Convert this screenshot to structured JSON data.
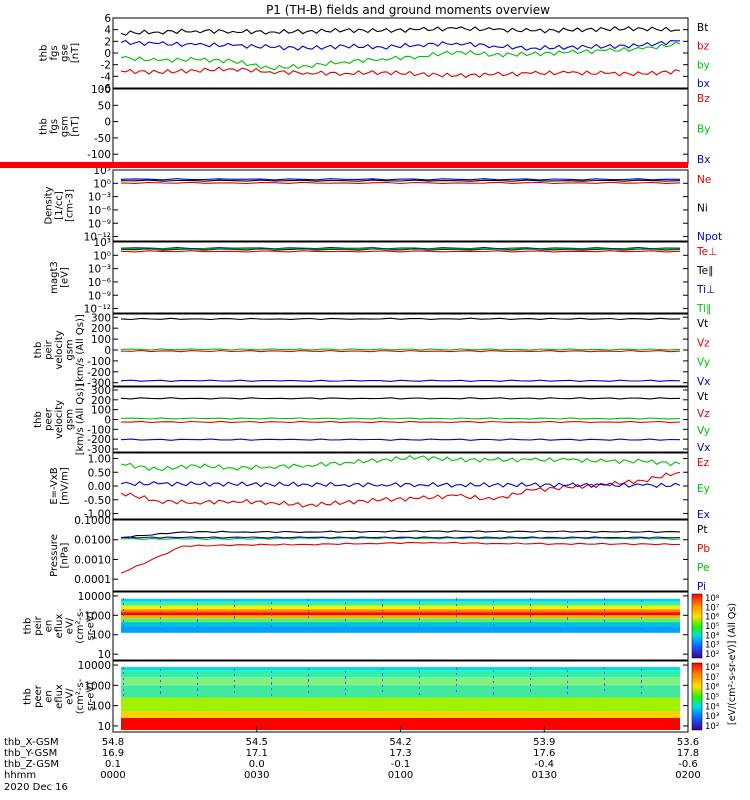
{
  "title": "P1 (TH-B) fields and ground moments overview",
  "colors": {
    "black": "#000000",
    "red": "#e00000",
    "green": "#00c000",
    "blue": "#0000d0"
  },
  "chart_data": [
    {
      "type": "line",
      "id": "fgs_gse",
      "ylabel": [
        "thb",
        "fgs",
        "gse",
        "[nT]"
      ],
      "ticks": [
        "6",
        "4",
        "2",
        "0",
        "-2",
        "-4",
        "-6"
      ],
      "ylim": [
        -6,
        6
      ],
      "series": [
        {
          "name": "Bt",
          "color": "black",
          "values": [
            3.4,
            3.6,
            3.8,
            3.7,
            3.6,
            3.7,
            3.9,
            3.8,
            4.0,
            4.2,
            4.0,
            3.8,
            3.9,
            4.1,
            4.2,
            3.9
          ]
        },
        {
          "name": "bz",
          "color": "red",
          "values": [
            -3.1,
            -3.3,
            -3.0,
            -2.7,
            -3.2,
            -3.4,
            -3.5,
            -3.3,
            -3.6,
            -3.9,
            -3.7,
            -3.5,
            -3.4,
            -3.5,
            -3.6,
            -3.1
          ]
        },
        {
          "name": "by",
          "color": "green",
          "values": [
            -0.8,
            -1.3,
            -1.1,
            -1.4,
            -2.6,
            -2.2,
            -1.5,
            -1.0,
            -0.6,
            0.2,
            -0.3,
            -0.2,
            0.1,
            0.4,
            0.7,
            1.6
          ]
        },
        {
          "name": "bx",
          "color": "blue",
          "values": [
            1.8,
            1.6,
            1.4,
            1.3,
            1.0,
            0.8,
            1.2,
            1.0,
            1.4,
            1.7,
            1.2,
            0.8,
            1.0,
            1.1,
            1.3,
            2.1
          ]
        }
      ]
    },
    {
      "type": "line",
      "id": "fgs_gsm",
      "ylabel": [
        "thb",
        "fgs",
        "gsm",
        "[nT]"
      ],
      "ticks": [
        "100",
        "50",
        "0",
        "-50",
        "-100"
      ],
      "ylim": [
        -130,
        100
      ],
      "series": [],
      "legend": [
        {
          "name": "Bz",
          "color": "red"
        },
        {
          "name": "By",
          "color": "green"
        },
        {
          "name": "Bx",
          "color": "blue"
        }
      ]
    },
    {
      "type": "line",
      "id": "density",
      "ylabel": [
        "Density",
        "[1/cc]",
        "[cm-3]"
      ],
      "ticks": [
        "10³",
        "10⁰",
        "10⁻³",
        "10⁻⁶",
        "10⁻⁹",
        "10⁻¹²"
      ],
      "ylim": [
        -13,
        3
      ],
      "series": [
        {
          "name": "Ne",
          "color": "red",
          "values": [
            0.1,
            0.1,
            0.1,
            0.1,
            0.1,
            0.1
          ]
        },
        {
          "name": "Ni",
          "color": "black",
          "values": [
            0.6,
            0.6,
            0.6,
            0.6,
            0.6,
            0.6
          ]
        },
        {
          "name": "Npot",
          "color": "blue",
          "values": [
            0.9,
            0.9,
            0.9,
            0.9,
            0.9,
            0.9
          ]
        }
      ]
    },
    {
      "type": "line",
      "id": "temperature",
      "ylabel": [
        "magt3",
        "[eV]"
      ],
      "ticks": [
        "10³",
        "10⁰",
        "10⁻³",
        "10⁻⁶",
        "10⁻⁹",
        "10⁻¹²"
      ],
      "ylim": [
        -13,
        3
      ],
      "series": [
        {
          "name": "Te⊥",
          "color": "red",
          "values": [
            0.9,
            0.9,
            0.9,
            0.9,
            0.9,
            0.9
          ]
        },
        {
          "name": "Te∥",
          "color": "black",
          "values": [
            1.3,
            1.3,
            1.3,
            1.3,
            1.3,
            1.3
          ]
        },
        {
          "name": "Ti⊥",
          "color": "blue",
          "values": [
            1.6,
            1.6,
            1.6,
            1.6,
            1.6,
            1.6
          ]
        },
        {
          "name": "Ti∥",
          "color": "green",
          "values": [
            1.4,
            1.4,
            1.4,
            1.4,
            1.4,
            1.4
          ]
        }
      ]
    },
    {
      "type": "line",
      "id": "peir_velocity",
      "ylabel": [
        "thb",
        "peir",
        "velocity",
        "gsm",
        "[km/s (All Qs)]"
      ],
      "ticks": [
        "300",
        "200",
        "100",
        "0",
        "-100",
        "-200",
        "-300"
      ],
      "ylim": [
        -330,
        330
      ],
      "series": [
        {
          "name": "Vt",
          "color": "black",
          "values": [
            285,
            285,
            285,
            286,
            286,
            286,
            285,
            285
          ]
        },
        {
          "name": "Vz",
          "color": "red",
          "values": [
            -10,
            -10,
            -10,
            -10,
            -10,
            -10,
            -10,
            -10
          ]
        },
        {
          "name": "Vy",
          "color": "green",
          "values": [
            5,
            5,
            5,
            5,
            5,
            5,
            5,
            5
          ]
        },
        {
          "name": "Vx",
          "color": "blue",
          "values": [
            -282,
            -282,
            -283,
            -283,
            -282,
            -282,
            -282,
            -282
          ]
        }
      ]
    },
    {
      "type": "line",
      "id": "peer_velocity",
      "ylabel": [
        "thb",
        "peer",
        "velocity",
        "gsm",
        "[km/s (All Qs)]"
      ],
      "ticks": [
        "300",
        "200",
        "100",
        "0",
        "-100",
        "-200",
        "-300"
      ],
      "ylim": [
        -330,
        330
      ],
      "series": [
        {
          "name": "Vt",
          "color": "black",
          "values": [
            215,
            215,
            215,
            215,
            215,
            215,
            215,
            215
          ]
        },
        {
          "name": "Vz",
          "color": "red",
          "values": [
            -25,
            -25,
            -25,
            -25,
            -25,
            -25,
            -25,
            -25
          ]
        },
        {
          "name": "Vy",
          "color": "green",
          "values": [
            10,
            10,
            10,
            10,
            10,
            10,
            10,
            10
          ]
        },
        {
          "name": "Vx",
          "color": "blue",
          "values": [
            -205,
            -205,
            -205,
            -205,
            -205,
            -205,
            -205,
            -205
          ]
        }
      ]
    },
    {
      "type": "line",
      "id": "efield",
      "ylabel": [
        "E=-VxB",
        "[mV/m]"
      ],
      "ticks": [
        "1.00",
        "0.50",
        "0.00",
        "-0.50",
        "-1.00"
      ],
      "ylim": [
        -1.2,
        1.2
      ],
      "series": [
        {
          "name": "Ez",
          "color": "red",
          "values": [
            -0.25,
            -0.55,
            -0.6,
            -0.55,
            -0.6,
            -0.7,
            -0.6,
            -0.5,
            -0.45,
            -0.35,
            -0.5,
            -0.15,
            -0.05,
            0.05,
            0.2,
            0.5
          ]
        },
        {
          "name": "Ey",
          "color": "green",
          "values": [
            0.8,
            0.6,
            0.75,
            0.65,
            0.7,
            0.75,
            0.85,
            0.95,
            1.05,
            0.95,
            0.95,
            0.95,
            0.95,
            0.9,
            0.9,
            0.8
          ]
        },
        {
          "name": "Ex",
          "color": "blue",
          "values": [
            0.08,
            0.08,
            0.07,
            0.07,
            0.06,
            0.06,
            0.05,
            0.05,
            0.05,
            0.04,
            0.04,
            0.04,
            0.03,
            0.03,
            0.02,
            0.02
          ]
        }
      ]
    },
    {
      "type": "line",
      "id": "pressure",
      "log": true,
      "ylabel": [
        "Pressure",
        "[nPa]"
      ],
      "ticks": [
        "0.1000",
        "0.0100",
        "0.0010",
        "0.0001"
      ],
      "ylim": [
        -4.6,
        -1
      ],
      "series": [
        {
          "name": "Pt",
          "color": "black",
          "values": [
            0.013,
            0.025,
            0.025,
            0.025,
            0.026,
            0.027,
            0.026,
            0.026,
            0.025,
            0.025
          ]
        },
        {
          "name": "Pb",
          "color": "red",
          "values": [
            0.0002,
            0.0048,
            0.0055,
            0.0058,
            0.0065,
            0.0072,
            0.0065,
            0.0062,
            0.0061,
            0.0058
          ]
        },
        {
          "name": "Pe",
          "color": "green",
          "values": [
            0.011,
            0.011,
            0.011,
            0.012,
            0.012,
            0.012,
            0.012,
            0.012,
            0.012,
            0.011
          ]
        },
        {
          "name": "Pi",
          "color": "blue",
          "values": [
            0.013,
            0.013,
            0.013,
            0.013,
            0.013,
            0.013,
            0.013,
            0.013,
            0.013,
            0.013
          ]
        }
      ]
    },
    {
      "type": "heatmap",
      "id": "peir_spec",
      "ylabel": [
        "thb",
        "peir",
        "en",
        "eflux",
        "eV/",
        "(cm²-s-",
        "sr-eV)"
      ],
      "ticks": [
        "10000",
        "1000",
        "100",
        "10"
      ],
      "ylim": [
        0.7,
        4.2
      ],
      "zlabel": "[eV/(cm²-s-sr-eV)] (All Qs)",
      "colorbar_ticks": [
        "10⁸",
        "10⁷",
        "10⁶",
        "10⁵",
        "10⁴",
        "10³",
        "10²"
      ]
    },
    {
      "type": "heatmap",
      "id": "peer_spec",
      "ylabel": [
        "thb",
        "peer",
        "en",
        "eflux",
        "eV/",
        "(cm²-s-",
        "sr-eV)"
      ],
      "ticks": [
        "10000",
        "1000",
        "100",
        "10"
      ],
      "ylim": [
        0.7,
        4.2
      ],
      "zlabel": "[eV/(cm²-s-sr-eV)] (All Qs)",
      "colorbar_ticks": [
        "10⁸",
        "10⁷",
        "10⁶",
        "10⁵",
        "10⁴",
        "10³",
        "10²"
      ]
    }
  ],
  "xaxis": {
    "rows": [
      {
        "label": "thb_X-GSM",
        "values": [
          "54.8",
          "54.5",
          "54.2",
          "53.9",
          "53.6"
        ]
      },
      {
        "label": "thb_Y-GSM",
        "values": [
          "16.9",
          "17.1",
          "17.3",
          "17.6",
          "17.8"
        ]
      },
      {
        "label": "thb_Z-GSM",
        "values": [
          "0.1",
          "0.0",
          "-0.1",
          "-0.4",
          "-0.6"
        ]
      },
      {
        "label": "hhmm",
        "values": [
          "0000",
          "0030",
          "0100",
          "0130",
          "0200"
        ]
      }
    ],
    "date": "2020 Dec 16"
  }
}
